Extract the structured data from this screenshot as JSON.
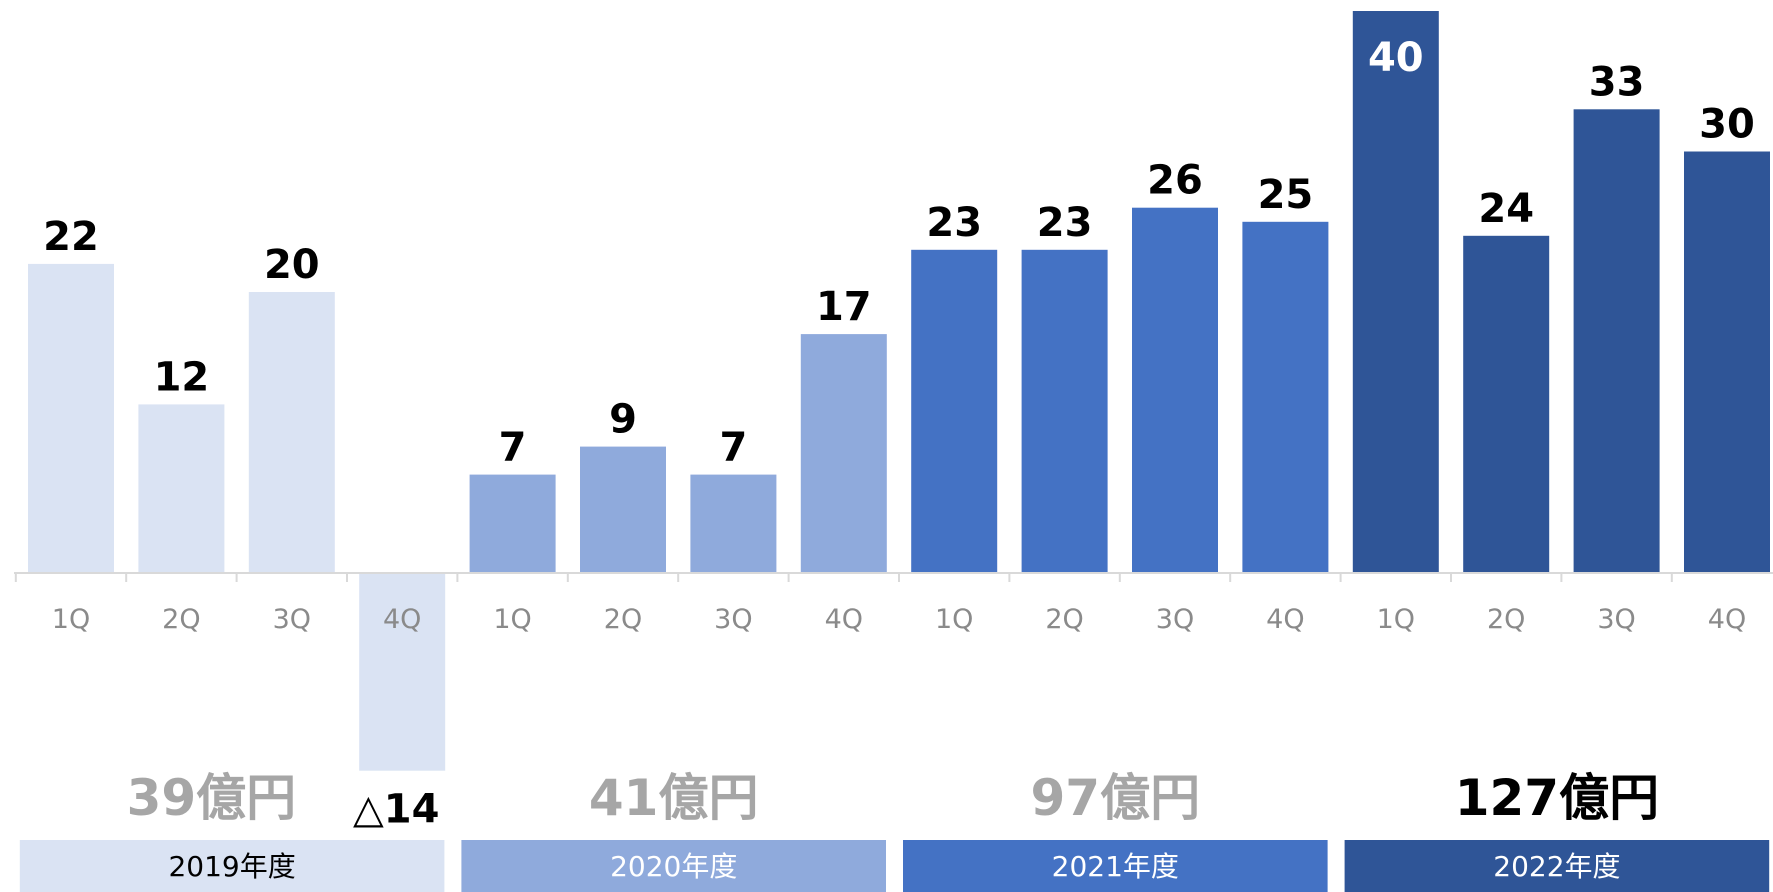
{
  "chart_data": {
    "type": "bar",
    "categories": [
      "1Q",
      "2Q",
      "3Q",
      "4Q",
      "1Q",
      "2Q",
      "3Q",
      "4Q",
      "1Q",
      "2Q",
      "3Q",
      "4Q",
      "1Q",
      "2Q",
      "3Q",
      "4Q"
    ],
    "values": [
      22,
      12,
      20,
      -14,
      7,
      9,
      7,
      17,
      23,
      23,
      26,
      25,
      40,
      24,
      33,
      30
    ],
    "value_labels": [
      "22",
      "12",
      "20",
      "△14",
      "7",
      "9",
      "7",
      "17",
      "23",
      "23",
      "26",
      "25",
      "40",
      "24",
      "33",
      "30"
    ],
    "ylim": [
      -14,
      40
    ],
    "grid": false,
    "groups": [
      {
        "year": "2019年度",
        "total": "39億円",
        "color": "#dae3f3",
        "total_color": "#a6a6a6",
        "year_text_color": "#000000"
      },
      {
        "year": "2020年度",
        "total": "41億円",
        "color": "#8faadc",
        "total_color": "#a6a6a6",
        "year_text_color": "#ffffff"
      },
      {
        "year": "2021年度",
        "total": "97億円",
        "color": "#4472c4",
        "total_color": "#a6a6a6",
        "year_text_color": "#ffffff"
      },
      {
        "year": "2022年度",
        "total": "127億円",
        "color": "#2f5597",
        "total_color": "#000000",
        "year_text_color": "#ffffff"
      }
    ],
    "value_label_color": "#000000",
    "inside_label_color": "#ffffff",
    "axis_color": "#d9d9d9"
  }
}
